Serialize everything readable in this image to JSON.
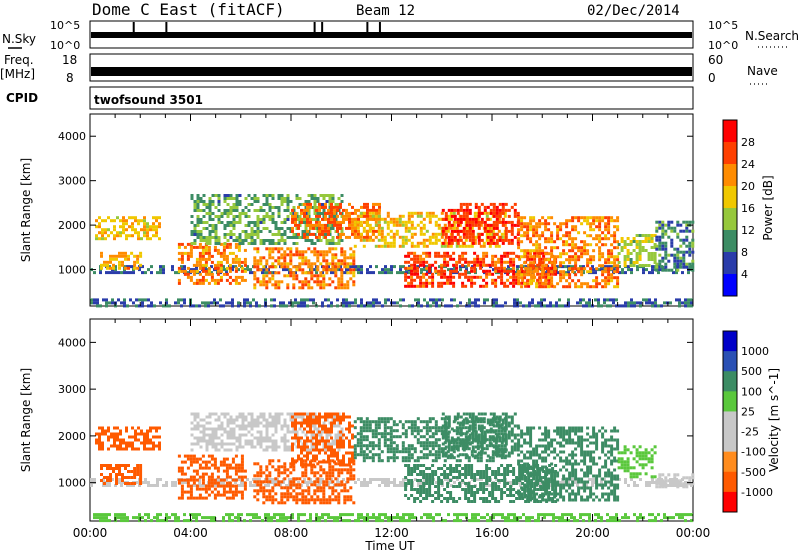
{
  "header": {
    "station": "Dome C East (fitACF)",
    "beam": "Beam 12",
    "date": "02/Dec/2014"
  },
  "panels": {
    "nsky_label": "N.Sky",
    "nsky_top": "10^5",
    "nsky_bottom": "10^0",
    "nsearch_label": "N.Search",
    "nsearch_top": "10^5",
    "nsearch_bottom": "10^0",
    "freq_label": "Freq.",
    "freq_unit": "[MHz]",
    "freq_top": "18",
    "freq_bottom": "8",
    "nave_label": "Nave",
    "nave_top": "60",
    "nave_bottom": "0",
    "cpid_label": "CPID",
    "cpid_value": "twofsound 3501"
  },
  "colors": {
    "power_scale": [
      "#0000ff",
      "#2a3caa",
      "#3c8c64",
      "#96c83c",
      "#f0c800",
      "#ff8c00",
      "#ff4000",
      "#ff0000"
    ],
    "velocity_scale": [
      "#ff0000",
      "#ff5a00",
      "#ff8c1e",
      "#c8c8c8",
      "#c8c8c8",
      "#5ac83c",
      "#3c8c64",
      "#2a50b4",
      "#0000c8"
    ],
    "noise": "#2a3caa"
  },
  "chart_data": [
    {
      "type": "heatmap",
      "name": "power",
      "xlabel": "",
      "ylabel": "Slant Range [km]",
      "x_range_hours": [
        0,
        24
      ],
      "ylim": [
        180,
        4500
      ],
      "y_ticks": [
        1000,
        2000,
        3000,
        4000
      ],
      "y_tick_labels": [
        "1000",
        "2000",
        "3000",
        "4000"
      ],
      "colorbar_label": "Power [dB]",
      "colorbar_ticks": [
        "4",
        "8",
        "12",
        "16",
        "20",
        "24",
        "28"
      ],
      "colorbar_range": [
        0,
        30
      ],
      "regions": [
        {
          "t0": 0.0,
          "t1": 24.0,
          "r0": 950,
          "r1": 1100,
          "level": 6
        },
        {
          "t0": 0.2,
          "t1": 2.8,
          "r0": 1700,
          "r1": 2200,
          "level": 18
        },
        {
          "t0": 0.4,
          "t1": 2.0,
          "r0": 1000,
          "r1": 1400,
          "level": 20
        },
        {
          "t0": 3.5,
          "t1": 6.2,
          "r0": 700,
          "r1": 1600,
          "level": 22
        },
        {
          "t0": 4.0,
          "t1": 10.0,
          "r0": 1600,
          "r1": 2700,
          "level": 10
        },
        {
          "t0": 6.5,
          "t1": 10.5,
          "r0": 600,
          "r1": 1500,
          "level": 22
        },
        {
          "t0": 8.0,
          "t1": 11.5,
          "r0": 1700,
          "r1": 2500,
          "level": 24
        },
        {
          "t0": 10.5,
          "t1": 16.5,
          "r0": 1500,
          "r1": 2300,
          "level": 18
        },
        {
          "t0": 12.5,
          "t1": 18.5,
          "r0": 600,
          "r1": 1400,
          "level": 26
        },
        {
          "t0": 14.0,
          "t1": 17.0,
          "r0": 1600,
          "r1": 2500,
          "level": 28
        },
        {
          "t0": 17.0,
          "t1": 21.0,
          "r0": 600,
          "r1": 2200,
          "level": 22
        },
        {
          "t0": 21.0,
          "t1": 22.5,
          "r0": 1100,
          "r1": 1800,
          "level": 14
        },
        {
          "t0": 22.5,
          "t1": 24.0,
          "r0": 1000,
          "r1": 2100,
          "level": 8
        },
        {
          "t0": 0.0,
          "t1": 24.0,
          "r0": 180,
          "r1": 350,
          "level": 6
        }
      ]
    },
    {
      "type": "heatmap",
      "name": "velocity",
      "xlabel": "Time UT",
      "ylabel": "Slant Range [km]",
      "x_ticks": [
        "00:00",
        "04:00",
        "08:00",
        "12:00",
        "16:00",
        "20:00",
        "00:00"
      ],
      "x_range_hours": [
        0,
        24
      ],
      "ylim": [
        180,
        4500
      ],
      "y_ticks": [
        1000,
        2000,
        3000,
        4000
      ],
      "y_tick_labels": [
        "1000",
        "2000",
        "3000",
        "4000"
      ],
      "colorbar_label": "Velocity [m s^-1]",
      "colorbar_ticks": [
        "1000",
        "500",
        "100",
        "25",
        "-25",
        "-100",
        "-500",
        "-1000"
      ],
      "regions": [
        {
          "t0": 0.0,
          "t1": 24.0,
          "r0": 950,
          "r1": 1100,
          "level": -20
        },
        {
          "t0": 0.2,
          "t1": 2.8,
          "r0": 1700,
          "r1": 2200,
          "level": -200
        },
        {
          "t0": 0.4,
          "t1": 2.0,
          "r0": 1000,
          "r1": 1400,
          "level": -300
        },
        {
          "t0": 3.5,
          "t1": 6.2,
          "r0": 700,
          "r1": 1600,
          "level": -300
        },
        {
          "t0": 4.0,
          "t1": 10.0,
          "r0": 1700,
          "r1": 2500,
          "level": 0
        },
        {
          "t0": 6.5,
          "t1": 10.5,
          "r0": 600,
          "r1": 1500,
          "level": -300
        },
        {
          "t0": 8.0,
          "t1": 10.5,
          "r0": 1400,
          "r1": 2500,
          "level": -400
        },
        {
          "t0": 10.5,
          "t1": 16.5,
          "r0": 1500,
          "r1": 2400,
          "level": 200
        },
        {
          "t0": 12.5,
          "t1": 18.5,
          "r0": 600,
          "r1": 1400,
          "level": 200
        },
        {
          "t0": 14.0,
          "t1": 17.0,
          "r0": 1600,
          "r1": 2500,
          "level": 300
        },
        {
          "t0": 17.0,
          "t1": 21.0,
          "r0": 600,
          "r1": 2200,
          "level": 150
        },
        {
          "t0": 21.0,
          "t1": 22.5,
          "r0": 1100,
          "r1": 1800,
          "level": 80
        },
        {
          "t0": 22.5,
          "t1": 24.0,
          "r0": 900,
          "r1": 1200,
          "level": 0
        },
        {
          "t0": 0.0,
          "t1": 24.0,
          "r0": 180,
          "r1": 350,
          "level": 40
        }
      ]
    }
  ]
}
